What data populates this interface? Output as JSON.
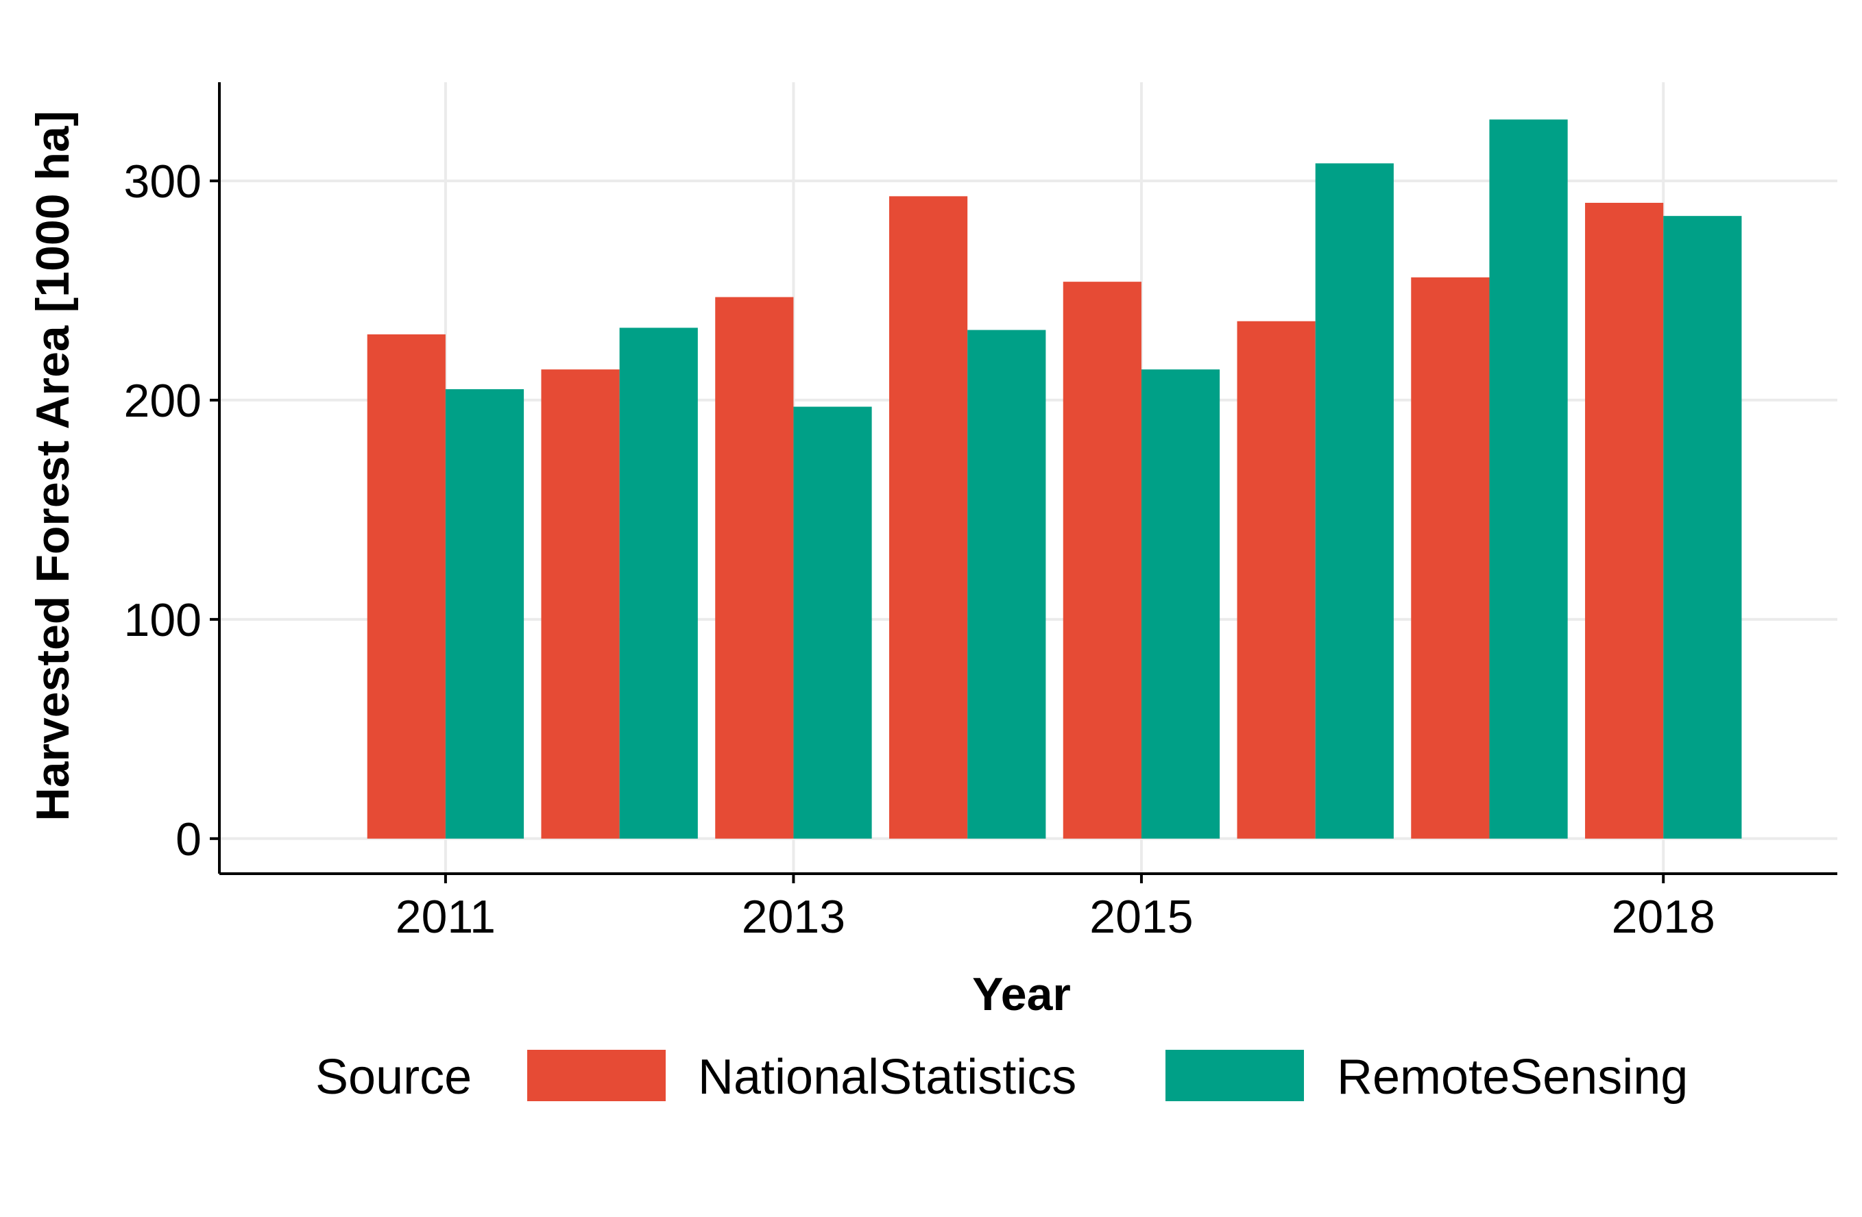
{
  "chart_data": {
    "type": "bar",
    "title": "",
    "xlabel": "Year",
    "ylabel": "Harvested Forest Area [1000 ha]",
    "x": [
      2011,
      2012,
      2013,
      2014,
      2015,
      2016,
      2017,
      2018
    ],
    "x_tick_labels": [
      "2011",
      "2013",
      "2015",
      "2018"
    ],
    "x_tick_values": [
      2011,
      2013,
      2015,
      2018
    ],
    "xlim": [
      2009.7,
      2019.0
    ],
    "ylim": [
      -16,
      345
    ],
    "y_ticks": [
      0,
      100,
      200,
      300
    ],
    "y_tick_labels": [
      "0",
      "100",
      "200",
      "300"
    ],
    "grid": true,
    "legend": {
      "title": "Source",
      "position": "bottom"
    },
    "series": [
      {
        "name": "NationalStatistics",
        "color": "#E64B35",
        "values": [
          230,
          214,
          247,
          293,
          254,
          236,
          256,
          290
        ]
      },
      {
        "name": "RemoteSensing",
        "color": "#00A087",
        "values": [
          205,
          233,
          197,
          232,
          214,
          308,
          328,
          284
        ]
      }
    ]
  },
  "colors": {
    "grid": "#EBEBEB",
    "axis": "#000000",
    "background": "#FFFFFF"
  }
}
